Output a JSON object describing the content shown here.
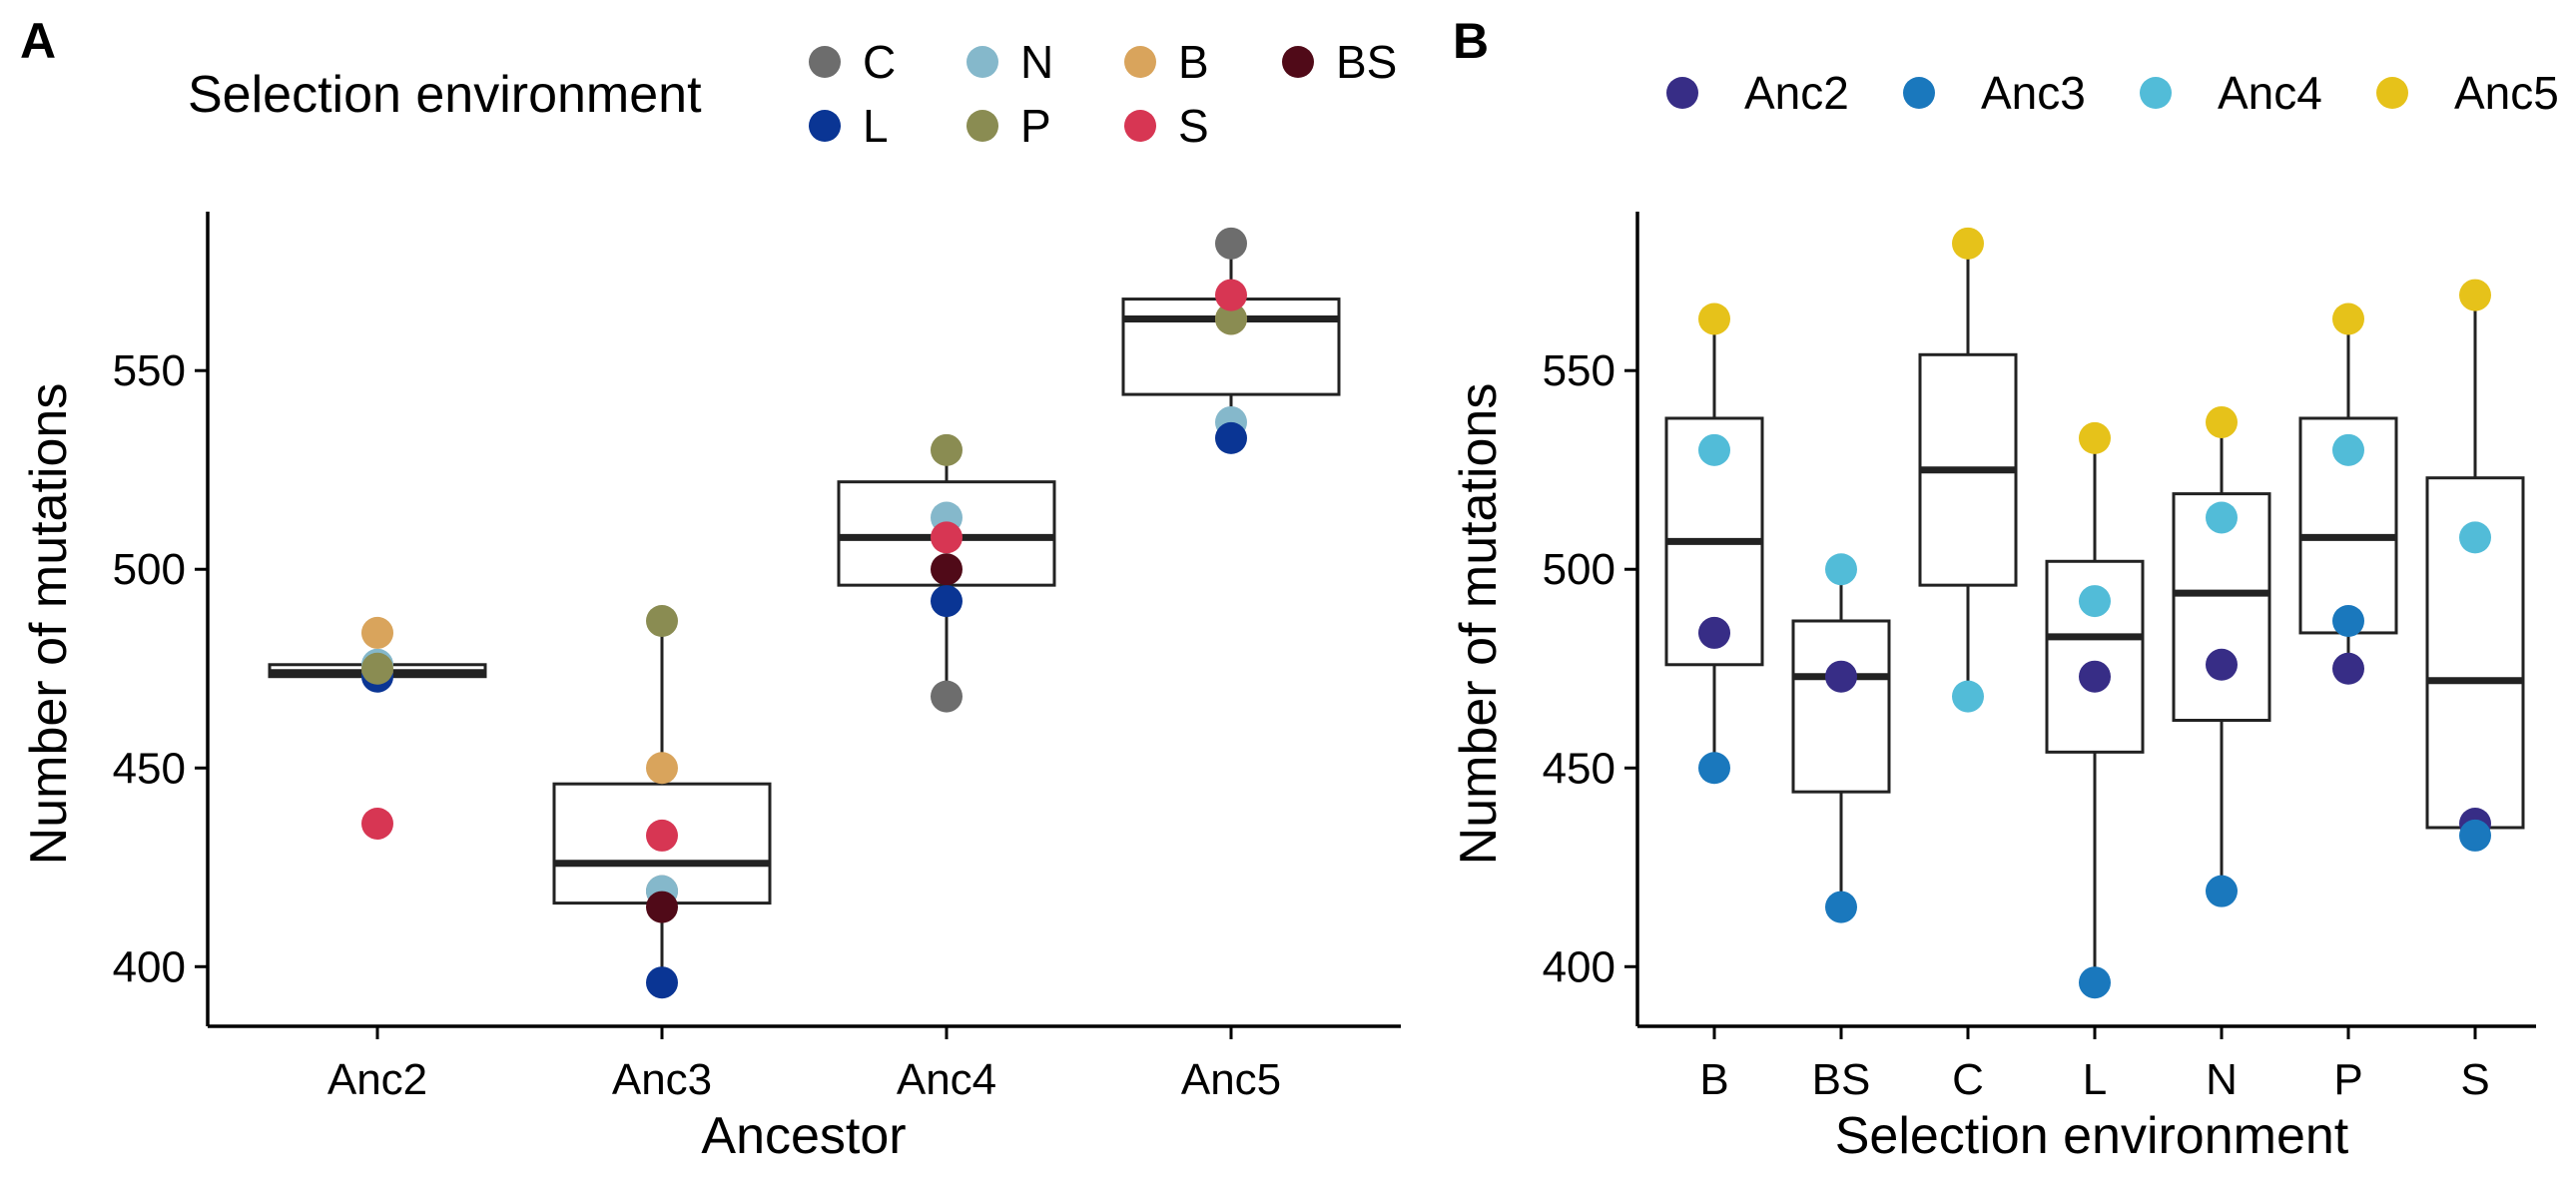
{
  "colors": {
    "C": "#6d6d6d",
    "N": "#85b8cb",
    "B": "#d9a45c",
    "BS": "#500a18",
    "L": "#0a3594",
    "P": "#8a8c52",
    "S": "#d73653",
    "Anc2": "#372d86",
    "Anc3": "#1a78bd",
    "Anc4": "#52bcd8",
    "Anc5": "#e6c21a",
    "axis": "#000000",
    "box": "#222222"
  },
  "chart_data": [
    {
      "panel": "A",
      "type": "box",
      "xlabel": "Ancestor",
      "ylabel": "Number of mutations",
      "ylim": [
        385,
        590
      ],
      "yticks": [
        400,
        450,
        500,
        550
      ],
      "categories": [
        "Anc2",
        "Anc3",
        "Anc4",
        "Anc5"
      ],
      "legend": {
        "title": "Selection environment",
        "position": "top",
        "entries": [
          {
            "label": "C",
            "color_key": "C"
          },
          {
            "label": "N",
            "color_key": "N"
          },
          {
            "label": "B",
            "color_key": "B"
          },
          {
            "label": "BS",
            "color_key": "BS"
          },
          {
            "label": "L",
            "color_key": "L"
          },
          {
            "label": "P",
            "color_key": "P"
          },
          {
            "label": "S",
            "color_key": "S"
          }
        ]
      },
      "boxes": [
        {
          "category": "Anc2",
          "min": 473,
          "q1": 473,
          "median": 474,
          "q3": 476,
          "max": 476
        },
        {
          "category": "Anc3",
          "min": 396,
          "q1": 416,
          "median": 426,
          "q3": 446,
          "max": 487
        },
        {
          "category": "Anc4",
          "min": 468,
          "q1": 496,
          "median": 508,
          "q3": 522,
          "max": 530
        },
        {
          "category": "Anc5",
          "min": 533,
          "q1": 544,
          "median": 563,
          "q3": 568,
          "max": 582
        }
      ],
      "points": [
        {
          "category": "Anc2",
          "group": "C",
          "value": 474
        },
        {
          "category": "Anc2",
          "group": "N",
          "value": 476
        },
        {
          "category": "Anc2",
          "group": "B",
          "value": 484
        },
        {
          "category": "Anc2",
          "group": "L",
          "value": 473
        },
        {
          "category": "Anc2",
          "group": "P",
          "value": 475
        },
        {
          "category": "Anc2",
          "group": "S",
          "value": 436
        },
        {
          "category": "Anc3",
          "group": "C",
          "value": 419
        },
        {
          "category": "Anc3",
          "group": "N",
          "value": 419
        },
        {
          "category": "Anc3",
          "group": "B",
          "value": 450
        },
        {
          "category": "Anc3",
          "group": "BS",
          "value": 415
        },
        {
          "category": "Anc3",
          "group": "L",
          "value": 396
        },
        {
          "category": "Anc3",
          "group": "P",
          "value": 487
        },
        {
          "category": "Anc3",
          "group": "S",
          "value": 433
        },
        {
          "category": "Anc4",
          "group": "C",
          "value": 468
        },
        {
          "category": "Anc4",
          "group": "N",
          "value": 513
        },
        {
          "category": "Anc4",
          "group": "BS",
          "value": 500
        },
        {
          "category": "Anc4",
          "group": "L",
          "value": 492
        },
        {
          "category": "Anc4",
          "group": "P",
          "value": 530
        },
        {
          "category": "Anc4",
          "group": "S",
          "value": 508
        },
        {
          "category": "Anc5",
          "group": "C",
          "value": 582
        },
        {
          "category": "Anc5",
          "group": "N",
          "value": 537
        },
        {
          "category": "Anc5",
          "group": "B",
          "value": 563
        },
        {
          "category": "Anc5",
          "group": "L",
          "value": 533
        },
        {
          "category": "Anc5",
          "group": "P",
          "value": 563
        },
        {
          "category": "Anc5",
          "group": "S",
          "value": 569
        }
      ]
    },
    {
      "panel": "B",
      "type": "box",
      "xlabel": "Selection environment",
      "ylabel": "Number of mutations",
      "ylim": [
        385,
        590
      ],
      "yticks": [
        400,
        450,
        500,
        550
      ],
      "categories": [
        "B",
        "BS",
        "C",
        "L",
        "N",
        "P",
        "S"
      ],
      "legend": {
        "title": "",
        "position": "top",
        "entries": [
          {
            "label": "Anc2",
            "color_key": "Anc2"
          },
          {
            "label": "Anc3",
            "color_key": "Anc3"
          },
          {
            "label": "Anc4",
            "color_key": "Anc4"
          },
          {
            "label": "Anc5",
            "color_key": "Anc5"
          }
        ]
      },
      "boxes": [
        {
          "category": "B",
          "min": 450,
          "q1": 476,
          "median": 507,
          "q3": 538,
          "max": 563
        },
        {
          "category": "BS",
          "min": 415,
          "q1": 444,
          "median": 473,
          "q3": 487,
          "max": 500
        },
        {
          "category": "C",
          "min": 468,
          "q1": 496,
          "median": 525,
          "q3": 554,
          "max": 582
        },
        {
          "category": "L",
          "min": 396,
          "q1": 454,
          "median": 483,
          "q3": 502,
          "max": 533
        },
        {
          "category": "N",
          "min": 419,
          "q1": 462,
          "median": 494,
          "q3": 519,
          "max": 537
        },
        {
          "category": "P",
          "min": 475,
          "q1": 484,
          "median": 508,
          "q3": 538,
          "max": 563
        },
        {
          "category": "S",
          "min": 433,
          "q1": 435,
          "median": 472,
          "q3": 523,
          "max": 569
        }
      ],
      "points": [
        {
          "category": "B",
          "group": "Anc2",
          "value": 484
        },
        {
          "category": "B",
          "group": "Anc3",
          "value": 450
        },
        {
          "category": "B",
          "group": "Anc4",
          "value": 530
        },
        {
          "category": "B",
          "group": "Anc5",
          "value": 563
        },
        {
          "category": "BS",
          "group": "Anc2",
          "value": 473
        },
        {
          "category": "BS",
          "group": "Anc3",
          "value": 415
        },
        {
          "category": "BS",
          "group": "Anc4",
          "value": 500
        },
        {
          "category": "C",
          "group": "Anc4",
          "value": 468
        },
        {
          "category": "C",
          "group": "Anc5",
          "value": 582
        },
        {
          "category": "L",
          "group": "Anc2",
          "value": 473
        },
        {
          "category": "L",
          "group": "Anc3",
          "value": 396
        },
        {
          "category": "L",
          "group": "Anc4",
          "value": 492
        },
        {
          "category": "L",
          "group": "Anc5",
          "value": 533
        },
        {
          "category": "N",
          "group": "Anc2",
          "value": 476
        },
        {
          "category": "N",
          "group": "Anc3",
          "value": 419
        },
        {
          "category": "N",
          "group": "Anc4",
          "value": 513
        },
        {
          "category": "N",
          "group": "Anc5",
          "value": 537
        },
        {
          "category": "P",
          "group": "Anc2",
          "value": 475
        },
        {
          "category": "P",
          "group": "Anc3",
          "value": 487
        },
        {
          "category": "P",
          "group": "Anc4",
          "value": 530
        },
        {
          "category": "P",
          "group": "Anc5",
          "value": 563
        },
        {
          "category": "S",
          "group": "Anc2",
          "value": 436
        },
        {
          "category": "S",
          "group": "Anc3",
          "value": 433
        },
        {
          "category": "S",
          "group": "Anc4",
          "value": 508
        },
        {
          "category": "S",
          "group": "Anc5",
          "value": 569
        }
      ]
    }
  ]
}
